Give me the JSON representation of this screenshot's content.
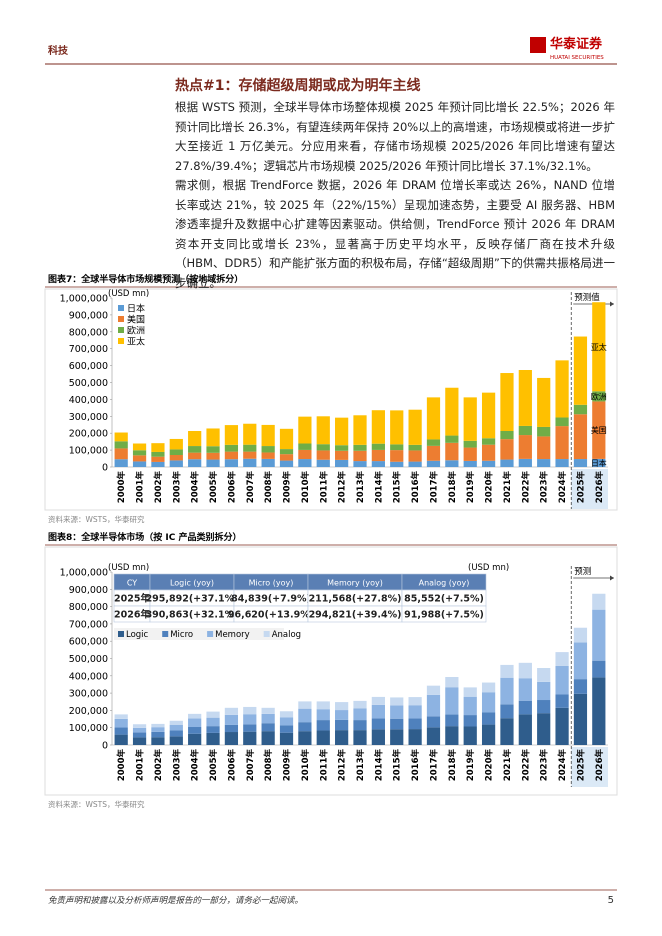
{
  "header": {
    "section": "科技",
    "logo": "华泰证券",
    "logo_en": "HUATAI SECURITIES"
  },
  "heading": "热点#1：存储超级周期或成为明年主线",
  "paragraphs": [
    "根据 WSTS 预测，全球半导体市场整体规模 2025 年预计同比增长 22.5%；2026 年预计同比增长 26.3%，有望连续两年保持 20%以上的高增速，市场规模或将进一步扩大至接近 1 万亿美元。分应用来看，存储市场规模 2025/2026 年同比增速有望达 27.8%/39.4%；逻辑芯片市场规模 2025/2026 年预计同比增长 37.1%/32.1%。",
    "需求侧，根据 TrendForce 数据，2026 年 DRAM 位增长率或达 26%，NAND 位增长率或达 21%，较 2025 年（22%/15%）呈现加速态势，主要受 AI 服务器、HBM 渗透率提升及数据中心扩建等因素驱动。供给侧，TrendForce 预计 2026 年 DRAM 资本开支同比或增长 23%，显著高于历史平均水平，反映存储厂商在技术升级（HBM、DDR5）和产能扩张方面的积极布局，存储“超级周期”下的供需共振格局进一步确立。"
  ],
  "figures": [
    {
      "title": "图表7：全球半导体市场规模预测（按地域拆分）",
      "source": "资料来源：WSTS，华泰研究",
      "chart_data": {
        "type": "stacked_bar",
        "unit_label": "(USD mn)",
        "annotation": "预测值",
        "legend": "upper left",
        "grid": false,
        "categories": [
          "2000年",
          "2001年",
          "2002年",
          "2003年",
          "2004年",
          "2005年",
          "2006年",
          "2007年",
          "2008年",
          "2009年",
          "2010年",
          "2011年",
          "2012年",
          "2013年",
          "2014年",
          "2015年",
          "2016年",
          "2017年",
          "2018年",
          "2019年",
          "2020年",
          "2021年",
          "2022年",
          "2023年",
          "2024年",
          "2025年",
          "2026年"
        ],
        "series": [
          {
            "name": "日本",
            "color": "#5b9bd5",
            "values": [
              46000,
              33000,
              30000,
              39000,
              46000,
              44000,
              46000,
              49000,
              48000,
              38000,
              47000,
              43000,
              42000,
              35000,
              35000,
              31000,
              32000,
              37000,
              40000,
              36000,
              37000,
              44000,
              48000,
              47000,
              47000,
              47000,
              48000
            ]
          },
          {
            "name": "美国",
            "color": "#ed7d31",
            "values": [
              64000,
              36000,
              31000,
              32000,
              39000,
              40000,
              45000,
              42000,
              38000,
              38000,
              54000,
              55000,
              54000,
              61000,
              66000,
              69000,
              66000,
              88000,
              103000,
              79000,
              95000,
              121000,
              141000,
              134000,
              195000,
              265000,
              340000
            ]
          },
          {
            "name": "欧洲",
            "color": "#70ad47",
            "values": [
              42000,
              30000,
              28000,
              33000,
              39000,
              39000,
              40000,
              41000,
              38000,
              30000,
              38000,
              37000,
              33000,
              35000,
              37000,
              34000,
              33000,
              38000,
              43000,
              40000,
              38000,
              48000,
              54000,
              56000,
              51000,
              56000,
              60000
            ]
          },
          {
            "name": "亚太",
            "color": "#ffc000",
            "values": [
              52000,
              40000,
              52000,
              62000,
              89000,
              105000,
              117000,
              124000,
              125000,
              120000,
              159000,
              165000,
              163000,
              175000,
              198000,
              201000,
              208000,
              249000,
              283000,
              257000,
              270000,
              343000,
              331000,
              290000,
              338000,
              404000,
              527000
            ]
          }
        ],
        "ylim": [
          0,
          1000000
        ],
        "yticks": [
          0,
          {
            "value": 100000,
            "label": "100,000"
          },
          {
            "value": 200000,
            "label": "200,000"
          },
          {
            "value": 300000,
            "label": "300,000"
          },
          {
            "value": 400000,
            "label": "400,000"
          },
          {
            "value": 500000,
            "label": "500,000"
          },
          {
            "value": 600000,
            "label": "600,000"
          },
          {
            "value": 700000,
            "label": "700,000"
          },
          {
            "value": 800000,
            "label": "800,000"
          },
          {
            "value": 900000,
            "label": "900,000"
          },
          {
            "value": 1000000,
            "label": "1,000,000"
          }
        ]
      }
    },
    {
      "title": "图表8：全球半导体市场（按 IC 产品类别拆分）",
      "source": "资料来源：WSTS，华泰研究",
      "chart_data": {
        "type": "stacked_bar",
        "unit_label": "(USD mn)",
        "annotation": "预测",
        "legend": "upper left",
        "grid": false,
        "table": {
          "header": [
            "CY",
            "Logic (yoy)",
            "Micro (yoy)",
            "Memory (yoy)",
            "Analog (yoy)"
          ],
          "rows": [
            [
              "2025年",
              "295,892(+37.1%)",
              "84,839(+7.9%)",
              "211,568(+27.8%)",
              "85,552(+7.5%)"
            ],
            [
              "2026年",
              "390,863(+32.1%)",
              "96,620(+13.9%)",
              "294,821(+39.4%)",
              "91,988(+7.5%)"
            ]
          ]
        },
        "categories": [
          "2000年",
          "2001年",
          "2002年",
          "2003年",
          "2004年",
          "2005年",
          "2006年",
          "2007年",
          "2008年",
          "2009年",
          "2010年",
          "2011年",
          "2012年",
          "2013年",
          "2014年",
          "2015年",
          "2016年",
          "2017年",
          "2018年",
          "2019年",
          "2020年",
          "2021年",
          "2022年",
          "2023年",
          "2024年",
          "2025年",
          "2026年"
        ],
        "series": [
          {
            "name": "Logic",
            "color": "#2f5d8c",
            "values": [
              60000,
              44000,
              45000,
              50000,
              65000,
              70000,
              75000,
              77000,
              80000,
              71000,
              80000,
              84000,
              86000,
              86000,
              91000,
              91000,
              92000,
              102000,
              109000,
              107000,
              118000,
              155000,
              177000,
              184000,
              215000,
              295892,
              390863
            ]
          },
          {
            "name": "Micro",
            "color": "#4f81bd",
            "values": [
              41000,
              28000,
              31000,
              34000,
              39000,
              39000,
              41000,
              42000,
              46000,
              42000,
              52000,
              60000,
              59000,
              58000,
              62000,
              61000,
              61000,
              64000,
              67000,
              66000,
              70000,
              80000,
              79000,
              76000,
              77000,
              84839,
              96620
            ]
          },
          {
            "name": "Memory",
            "color": "#8db3e2",
            "values": [
              50000,
              27000,
              27000,
              33000,
              49000,
              49000,
              58000,
              59000,
              54000,
              46000,
              78000,
              63000,
              57000,
              67000,
              79000,
              77000,
              77000,
              124000,
              158000,
              106000,
              117000,
              154000,
              130000,
              105000,
              165000,
              211568,
              294821
            ]
          },
          {
            "name": "Analog",
            "color": "#c6d9f0",
            "values": [
              26000,
              21000,
              19000,
              23000,
              27000,
              35000,
              41000,
              42000,
              35000,
              36000,
              42000,
              45000,
              46000,
              44000,
              46000,
              46000,
              47000,
              53000,
              59000,
              54000,
              56000,
              74000,
              89000,
              80000,
              80000,
              85552,
              91988
            ]
          }
        ],
        "ylim": [
          0,
          1000000
        ],
        "yticks": [
          0,
          {
            "value": 100000,
            "label": "100,000"
          },
          {
            "value": 200000,
            "label": "200,000"
          },
          {
            "value": 300000,
            "label": "300,000"
          },
          {
            "value": 400000,
            "label": "400,000"
          },
          {
            "value": 500000,
            "label": "500,000"
          },
          {
            "value": 600000,
            "label": "600,000"
          },
          {
            "value": 700000,
            "label": "700,000"
          },
          {
            "value": 800000,
            "label": "800,000"
          },
          {
            "value": 900000,
            "label": "900,000"
          },
          {
            "value": 1000000,
            "label": "1,000,000"
          }
        ]
      }
    }
  ],
  "footer": {
    "disclaimer": "免责声明和披露以及分析师声明是报告的一部分，请务必一起阅读。",
    "page": "5"
  }
}
